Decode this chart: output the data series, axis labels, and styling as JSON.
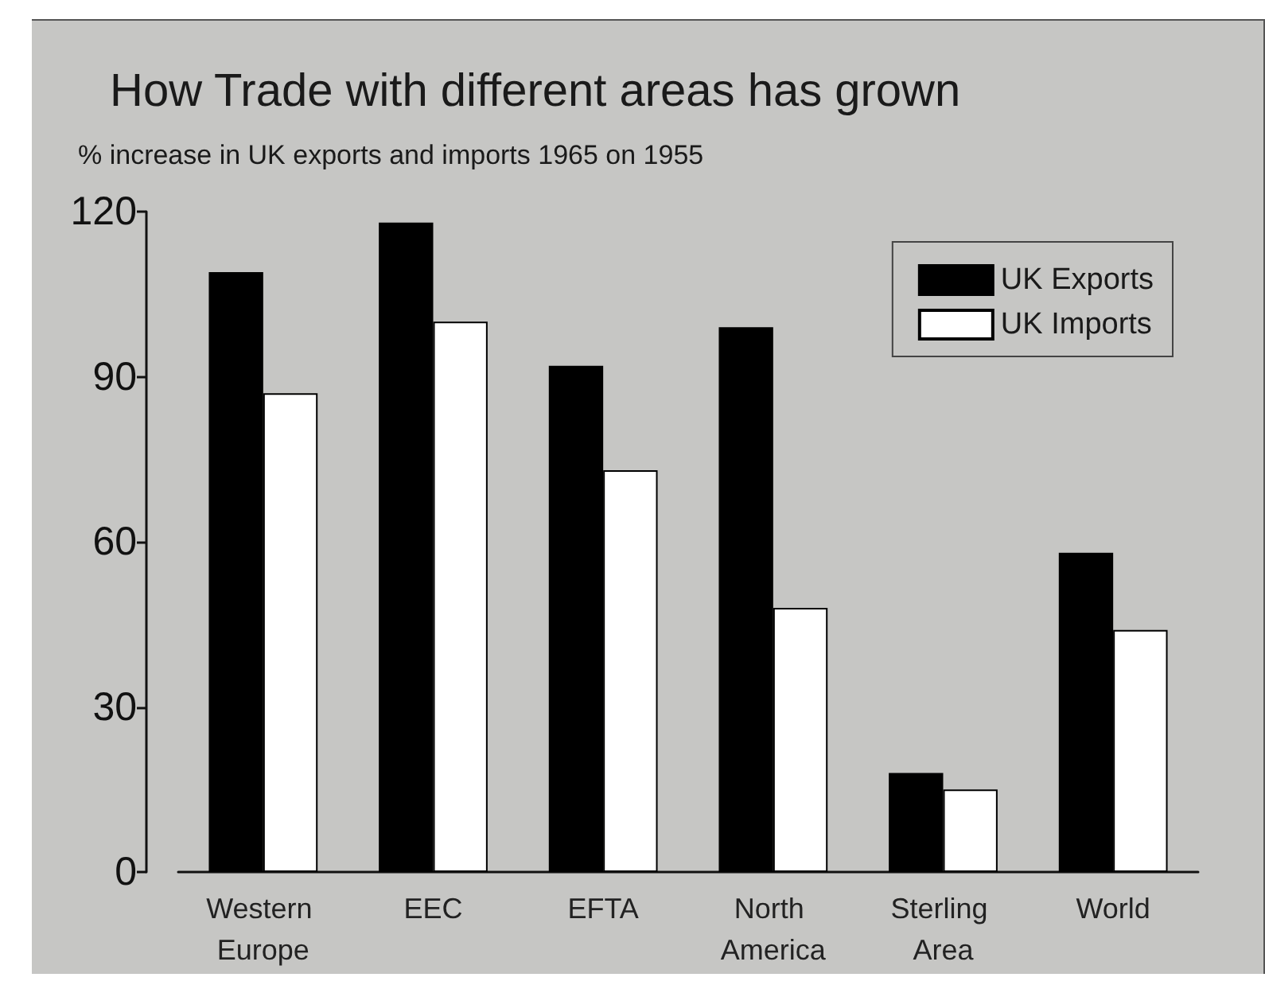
{
  "chart_data": {
    "type": "bar",
    "title": "How Trade with different areas has grown",
    "subtitle": "% increase in UK exports and imports 1965 on 1955",
    "categories": [
      "Western Europe",
      "EEC",
      "EFTA",
      "North America",
      "Sterling Area",
      "World"
    ],
    "series": [
      {
        "name": "UK Exports",
        "color": "#000000",
        "values": [
          109,
          118,
          92,
          99,
          18,
          58
        ]
      },
      {
        "name": "UK Imports",
        "color": "#ffffff",
        "values": [
          87,
          100,
          73,
          48,
          15,
          44
        ]
      }
    ],
    "ylim": [
      0,
      120
    ],
    "yticks": [
      0,
      30,
      60,
      90,
      120
    ],
    "grid": false,
    "legend": "top right"
  }
}
